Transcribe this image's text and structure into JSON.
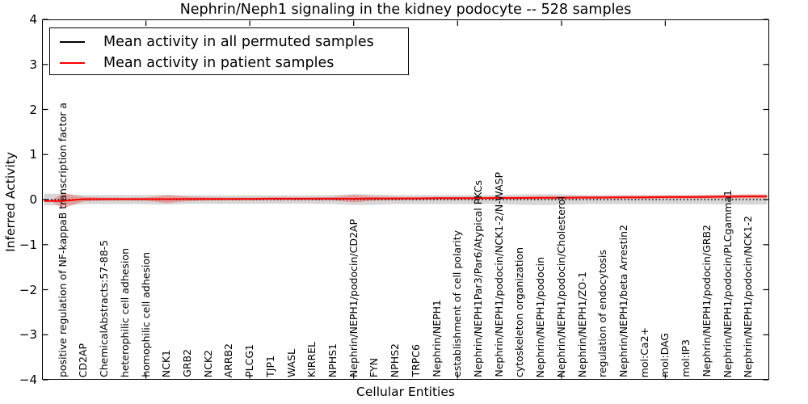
{
  "chart_data": {
    "type": "line",
    "title": "Nephrin/Neph1 signaling in the kidney podocyte -- 528 samples",
    "xlabel": "Cellular Entities",
    "ylabel": "Inferred Activity",
    "ylim": [
      -4,
      4
    ],
    "ytick_values": [
      4,
      3,
      2,
      1,
      0,
      -1,
      -2,
      -3,
      -4
    ],
    "ytick_labels": [
      "4",
      "3",
      "2",
      "1",
      "0",
      "−1",
      "−2",
      "−3",
      "−4"
    ],
    "xlim_units": [
      0,
      35
    ],
    "xtick_values": [
      5,
      10,
      15,
      20,
      25,
      30
    ],
    "grid": false,
    "legend_position": "upper left",
    "categories": [
      "positive regulation of NF-kappaB transcription factor a",
      "CD2AP",
      "ChemicalAbstracts:57-88-5",
      "heterophilic cell adhesion",
      "homophilic cell adhesion",
      "NCK1",
      "GRB2",
      "NCK2",
      "ARRB2",
      "PLCG1",
      "TJP1",
      "WASL",
      "KIRREL",
      "NPHS1",
      "Nephrin/NEPH1/podocin/CD2AP",
      "FYN",
      "NPHS2",
      "TRPC6",
      "Nephrin/NEPH1",
      "establishment of cell polarity",
      "Nephrin/NEPH1Par3/Par6/Atypical PKCs",
      "Nephrin/NEPH1/podocin/NCK1-2/N-WASP",
      "cytoskeleton organization",
      "Nephrin/NEPH1/podocin",
      "Nephrin/NEPH1/podocin/Cholesterol",
      "Nephrin/NEPH1/ZO-1",
      "regulation of endocytosis",
      "Nephrin/NEPH1/beta Arrestin2",
      "mol:Ca2+",
      "mol:DAG",
      "mol:IP3",
      "Nephrin/NEPH1/podocin/GRB2",
      "Nephrin/NEPH1/podocin/PLCgamma1",
      "Nephrin/NEPH1/podocin/NCK1-2"
    ],
    "series": [
      {
        "name": "Mean activity in all permuted samples",
        "color": "#000000",
        "line_style": "dotted",
        "values": [
          0,
          0,
          0,
          0,
          0,
          0,
          0,
          0,
          0,
          0,
          0,
          0,
          0,
          0,
          0,
          0,
          0,
          0,
          0,
          0,
          0,
          0,
          0,
          0,
          0,
          0,
          0,
          0,
          0,
          0,
          0,
          0,
          0,
          0
        ],
        "band_halfwidth": [
          0.13,
          0.1,
          0.1,
          0.1,
          0.1,
          0.11,
          0.095,
          0.095,
          0.095,
          0.095,
          0.095,
          0.095,
          0.095,
          0.1,
          0.12,
          0.115,
          0.1,
          0.1,
          0.1,
          0.1,
          0.1,
          0.1,
          0.115,
          0.12,
          0.115,
          0.1,
          0.1,
          0.1,
          0.1,
          0.1,
          0.1,
          0.1,
          0.105,
          0.11
        ],
        "band_color": "rgba(120,120,120,0.30)"
      },
      {
        "name": "Mean activity in patient samples",
        "color": "#ff0000",
        "line_style": "solid",
        "values": [
          -0.03,
          0.01,
          0.01,
          0.01,
          0.01,
          0.01,
          0.015,
          0.015,
          0.015,
          0.015,
          0.02,
          0.02,
          0.02,
          0.02,
          0.02,
          0.025,
          0.025,
          0.025,
          0.03,
          0.03,
          0.03,
          0.035,
          0.035,
          0.04,
          0.04,
          0.045,
          0.045,
          0.05,
          0.05,
          0.055,
          0.055,
          0.06,
          0.065,
          0.07
        ],
        "band_halfwidth": [
          0.17,
          0.05,
          0.035,
          0.03,
          0.035,
          0.085,
          0.05,
          0.035,
          0.03,
          0.03,
          0.03,
          0.03,
          0.03,
          0.035,
          0.085,
          0.045,
          0.035,
          0.03,
          0.03,
          0.03,
          0.03,
          0.03,
          0.03,
          0.035,
          0.035,
          0.03,
          0.03,
          0.035,
          0.035,
          0.035,
          0.035,
          0.04,
          0.04,
          0.045
        ],
        "band_color": "rgba(255,0,0,0.25)"
      }
    ]
  }
}
